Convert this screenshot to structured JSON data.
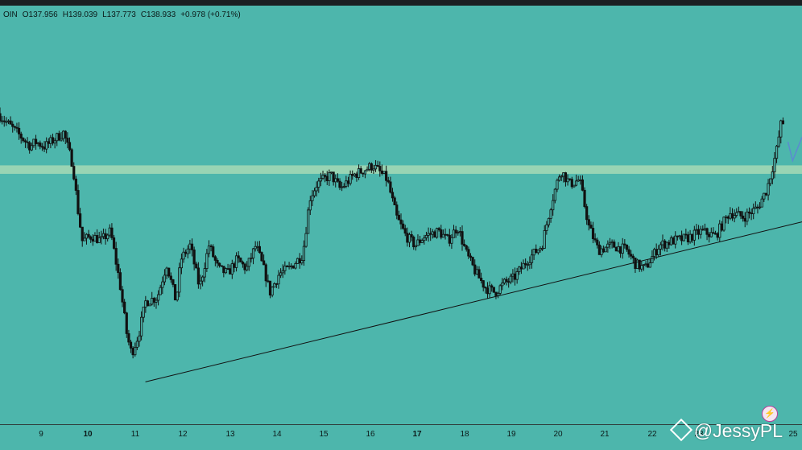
{
  "ohlc": {
    "symbol": "OIN",
    "open": "O137.956",
    "high": "H139.039",
    "low": "L137.773",
    "close": "C138.933",
    "change": "+0.978 (+0.71%)"
  },
  "watermark": "@JessyPL",
  "icons": {
    "watermark_logo": "binance-diamond-icon",
    "bolt": "lightning-bolt-icon"
  },
  "colors": {
    "background": "#4db6ac",
    "zone": "#a7d9b5",
    "candle": "#111111",
    "trendline": "#111111",
    "projection": "#5b8bd0"
  },
  "chart_data": {
    "type": "candlestick",
    "x_ticks": [
      {
        "label": "9",
        "bold": false
      },
      {
        "label": "10",
        "bold": true
      },
      {
        "label": "11",
        "bold": false
      },
      {
        "label": "12",
        "bold": false
      },
      {
        "label": "13",
        "bold": false
      },
      {
        "label": "14",
        "bold": false
      },
      {
        "label": "15",
        "bold": false
      },
      {
        "label": "16",
        "bold": false
      },
      {
        "label": "17",
        "bold": true
      },
      {
        "label": "18",
        "bold": false
      },
      {
        "label": "19",
        "bold": false
      },
      {
        "label": "20",
        "bold": false
      },
      {
        "label": "21",
        "bold": false
      },
      {
        "label": "22",
        "bold": false
      },
      {
        "label": "23",
        "bold": false
      },
      {
        "label": "25",
        "bold": false
      }
    ],
    "x_range": [
      8.2,
      25.3
    ],
    "y_range": [
      132.0,
      140.5
    ],
    "price_path": [
      [
        8.2,
        138.6
      ],
      [
        8.4,
        138.4
      ],
      [
        8.7,
        138.1
      ],
      [
        8.9,
        137.9
      ],
      [
        9.0,
        138.0
      ],
      [
        9.2,
        137.9
      ],
      [
        9.4,
        138.05
      ],
      [
        9.6,
        138.2
      ],
      [
        9.8,
        137.5
      ],
      [
        9.9,
        136.6
      ],
      [
        10.0,
        135.9
      ],
      [
        10.2,
        136.0
      ],
      [
        10.4,
        135.9
      ],
      [
        10.6,
        136.1
      ],
      [
        10.8,
        135.0
      ],
      [
        10.95,
        133.9
      ],
      [
        11.05,
        133.5
      ],
      [
        11.2,
        133.9
      ],
      [
        11.35,
        134.6
      ],
      [
        11.6,
        134.7
      ],
      [
        11.8,
        135.4
      ],
      [
        12.0,
        134.6
      ],
      [
        12.1,
        135.5
      ],
      [
        12.3,
        135.8
      ],
      [
        12.5,
        134.9
      ],
      [
        12.7,
        135.8
      ],
      [
        12.9,
        135.3
      ],
      [
        13.1,
        135.2
      ],
      [
        13.3,
        135.5
      ],
      [
        13.5,
        135.3
      ],
      [
        13.7,
        135.8
      ],
      [
        13.9,
        135.2
      ],
      [
        14.0,
        134.8
      ],
      [
        14.2,
        135.2
      ],
      [
        14.4,
        135.3
      ],
      [
        14.7,
        135.6
      ],
      [
        14.85,
        136.8
      ],
      [
        15.0,
        137.1
      ],
      [
        15.3,
        137.3
      ],
      [
        15.5,
        137.0
      ],
      [
        15.8,
        137.3
      ],
      [
        16.0,
        137.4
      ],
      [
        16.2,
        137.5
      ],
      [
        16.5,
        137.2
      ],
      [
        16.7,
        136.4
      ],
      [
        16.9,
        136.0
      ],
      [
        17.1,
        135.8
      ],
      [
        17.3,
        136.0
      ],
      [
        17.6,
        136.1
      ],
      [
        17.8,
        135.9
      ],
      [
        18.0,
        136.2
      ],
      [
        18.2,
        135.6
      ],
      [
        18.4,
        135.2
      ],
      [
        18.6,
        134.9
      ],
      [
        18.8,
        134.8
      ],
      [
        19.0,
        135.0
      ],
      [
        19.2,
        135.1
      ],
      [
        19.5,
        135.5
      ],
      [
        19.8,
        135.8
      ],
      [
        20.0,
        136.7
      ],
      [
        20.2,
        137.4
      ],
      [
        20.4,
        137.1
      ],
      [
        20.6,
        137.2
      ],
      [
        20.8,
        136.2
      ],
      [
        21.0,
        135.7
      ],
      [
        21.3,
        135.8
      ],
      [
        21.6,
        135.7
      ],
      [
        21.8,
        135.4
      ],
      [
        22.0,
        135.3
      ],
      [
        22.3,
        135.8
      ],
      [
        22.6,
        135.9
      ],
      [
        22.9,
        135.95
      ],
      [
        23.2,
        136.1
      ],
      [
        23.5,
        136.0
      ],
      [
        23.8,
        136.5
      ],
      [
        24.1,
        136.4
      ],
      [
        24.4,
        136.6
      ],
      [
        24.6,
        137.0
      ],
      [
        24.8,
        137.8
      ],
      [
        24.9,
        138.4
      ]
    ],
    "resistance_zone": [
      137.32,
      137.5
    ],
    "trendline": [
      [
        11.3,
        132.9
      ],
      [
        25.3,
        136.3
      ]
    ],
    "projection": [
      [
        25.0,
        138.0
      ],
      [
        25.1,
        137.6
      ],
      [
        25.3,
        138.1
      ]
    ]
  }
}
